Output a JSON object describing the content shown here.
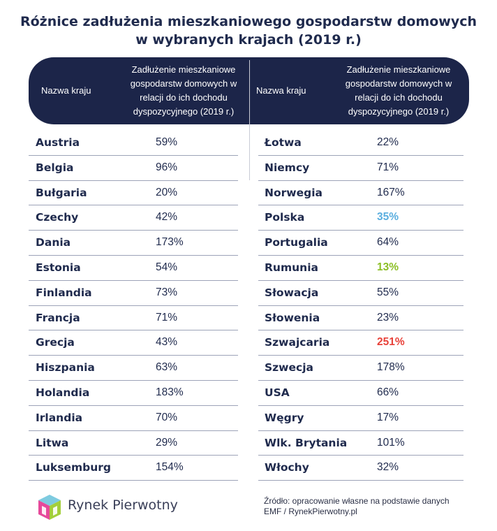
{
  "title": {
    "line1": "Różnice zadłużenia mieszkaniowego gospodarstw domowych",
    "line2": "w wybranych krajach (2019 r.)"
  },
  "header": {
    "col_name": "Nazwa kraju",
    "col_value": "Zadłużenie mieszkaniowe gospodarstw domowych w relacji do ich dochodu dyspozycyjnego (2019 r.)"
  },
  "left_rows": [
    {
      "country": "Austria",
      "value": "59%"
    },
    {
      "country": "Belgia",
      "value": "96%"
    },
    {
      "country": "Bułgaria",
      "value": "20%"
    },
    {
      "country": "Czechy",
      "value": "42%"
    },
    {
      "country": "Dania",
      "value": "173%"
    },
    {
      "country": "Estonia",
      "value": "54%"
    },
    {
      "country": "Finlandia",
      "value": "73%"
    },
    {
      "country": "Francja",
      "value": "71%"
    },
    {
      "country": "Grecja",
      "value": "43%"
    },
    {
      "country": "Hiszpania",
      "value": "63%"
    },
    {
      "country": "Holandia",
      "value": "183%"
    },
    {
      "country": "Irlandia",
      "value": "70%"
    },
    {
      "country": "Litwa",
      "value": "29%"
    },
    {
      "country": "Luksemburg",
      "value": "154%"
    }
  ],
  "right_rows": [
    {
      "country": "Łotwa",
      "value": "22%"
    },
    {
      "country": "Niemcy",
      "value": "71%"
    },
    {
      "country": "Norwegia",
      "value": "167%"
    },
    {
      "country": "Polska",
      "value": "35%",
      "color": "#5aaedf"
    },
    {
      "country": "Portugalia",
      "value": "64%"
    },
    {
      "country": "Rumunia",
      "value": "13%",
      "color": "#8cbf26"
    },
    {
      "country": "Słowacja",
      "value": "55%"
    },
    {
      "country": "Słowenia",
      "value": "23%"
    },
    {
      "country": "Szwajcaria",
      "value": "251%",
      "color": "#e8423a"
    },
    {
      "country": "Szwecja",
      "value": "178%"
    },
    {
      "country": "USA",
      "value": "66%"
    },
    {
      "country": "Węgry",
      "value": "17%"
    },
    {
      "country": "Wlk. Brytania",
      "value": "101%"
    },
    {
      "country": "Włochy",
      "value": "32%"
    }
  ],
  "footer": {
    "brand": "Rynek Pierwotny",
    "source_line1": "Źródło: opracowanie własne na podstawie danych",
    "source_line2": "EMF / RynekPierwotny.pl"
  },
  "colors": {
    "header_bg": "#1c2549",
    "text": "#1f2a4d"
  }
}
